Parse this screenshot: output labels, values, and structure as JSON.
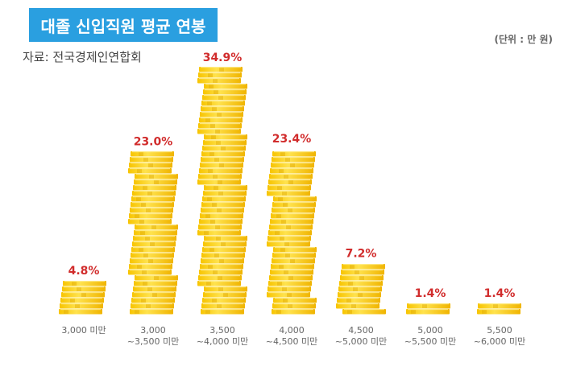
{
  "header": {
    "title": "대졸 신입직원 평균 연봉",
    "source": "자료: 전국경제인연합회",
    "unit": "(단위 : 만 원)"
  },
  "colors": {
    "title_bg": "#2a9fe0",
    "coin_light": "#ffd93a",
    "coin_dark": "#e0a800",
    "label": "#d12c2c",
    "category": "#666666"
  },
  "chart_data": {
    "type": "bar",
    "title": "대졸 신입직원 평균 연봉",
    "unit": "(단위 : 만 원)",
    "categories": [
      [
        "3,000 미만"
      ],
      [
        "3,000",
        "~3,500 미만"
      ],
      [
        "3,500",
        "~4,000 미만"
      ],
      [
        "4,000",
        "~4,500 미만"
      ],
      [
        "4,500",
        "~5,000 미만"
      ],
      [
        "5,000",
        "~5,500 미만"
      ],
      [
        "5,500",
        "~6,000 미만"
      ]
    ],
    "values": [
      4.8,
      23.0,
      34.9,
      23.4,
      7.2,
      1.4,
      1.4
    ],
    "value_labels": [
      "4.8%",
      "23.0%",
      "34.9%",
      "23.4%",
      "7.2%",
      "1.4%",
      "1.4%"
    ],
    "ylim": [
      0,
      34.9
    ],
    "grid": false
  }
}
